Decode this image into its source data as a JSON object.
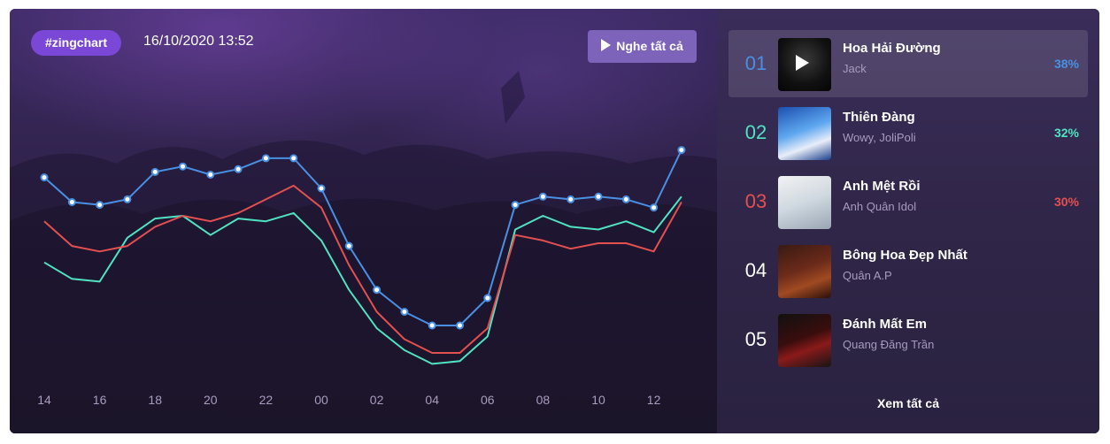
{
  "header": {
    "tag": "#zingchart",
    "datetime": "16/10/2020 13:52",
    "play_all_label": "Nghe tất cả"
  },
  "colors": {
    "series1": "#4a90e2",
    "series2": "#50e3c2",
    "series3": "#e35050",
    "tag_bg": "#7a47d6",
    "button_bg": "#7d63b9"
  },
  "chart_data": {
    "type": "line",
    "x": [
      "14",
      "15",
      "16",
      "17",
      "18",
      "19",
      "20",
      "21",
      "22",
      "23",
      "00",
      "01",
      "02",
      "03",
      "04",
      "05",
      "06",
      "07",
      "08",
      "09",
      "10",
      "11",
      "12",
      "13"
    ],
    "tick_labels": [
      "14",
      "16",
      "18",
      "20",
      "22",
      "00",
      "02",
      "04",
      "06",
      "08",
      "10",
      "12"
    ],
    "ylim": [
      0,
      100
    ],
    "grid": false,
    "legend": "none",
    "series": [
      {
        "values": [
          74,
          65,
          64,
          66,
          76,
          78,
          75,
          77,
          81,
          81,
          70,
          49,
          33,
          25,
          20,
          20,
          30,
          64,
          67,
          66,
          67,
          66,
          63,
          84
        ],
        "markers": true
      },
      {
        "values": [
          43,
          37,
          36,
          52,
          59,
          60,
          53,
          59,
          58,
          61,
          51,
          33,
          19,
          11,
          6,
          7,
          16,
          55,
          60,
          56,
          55,
          58,
          54,
          67
        ],
        "markers": false
      },
      {
        "values": [
          58,
          49,
          47,
          49,
          56,
          60,
          58,
          61,
          66,
          71,
          63,
          42,
          25,
          15,
          10,
          10,
          19,
          53,
          51,
          48,
          50,
          50,
          47,
          65
        ],
        "markers": false
      }
    ]
  },
  "chart_list": {
    "items": [
      {
        "rank": "01",
        "title": "Hoa Hải Đường",
        "artist": "Jack",
        "percent": "38%",
        "rank_color": "#4a90e2",
        "active": true
      },
      {
        "rank": "02",
        "title": "Thiên Đàng",
        "artist": "Wowy, JoliPoli",
        "percent": "32%",
        "rank_color": "#50e3c2",
        "active": false
      },
      {
        "rank": "03",
        "title": "Anh Mệt Rồi",
        "artist": "Anh Quân Idol",
        "percent": "30%",
        "rank_color": "#e35050",
        "active": false
      },
      {
        "rank": "04",
        "title": "Bông Hoa Đẹp Nhất",
        "artist": "Quân A.P",
        "percent": "",
        "rank_color": "#ffffff",
        "active": false
      },
      {
        "rank": "05",
        "title": "Đánh Mất Em",
        "artist": "Quang Đăng Trần",
        "percent": "",
        "rank_color": "#ffffff",
        "active": false
      }
    ],
    "see_all_label": "Xem tất cả"
  }
}
